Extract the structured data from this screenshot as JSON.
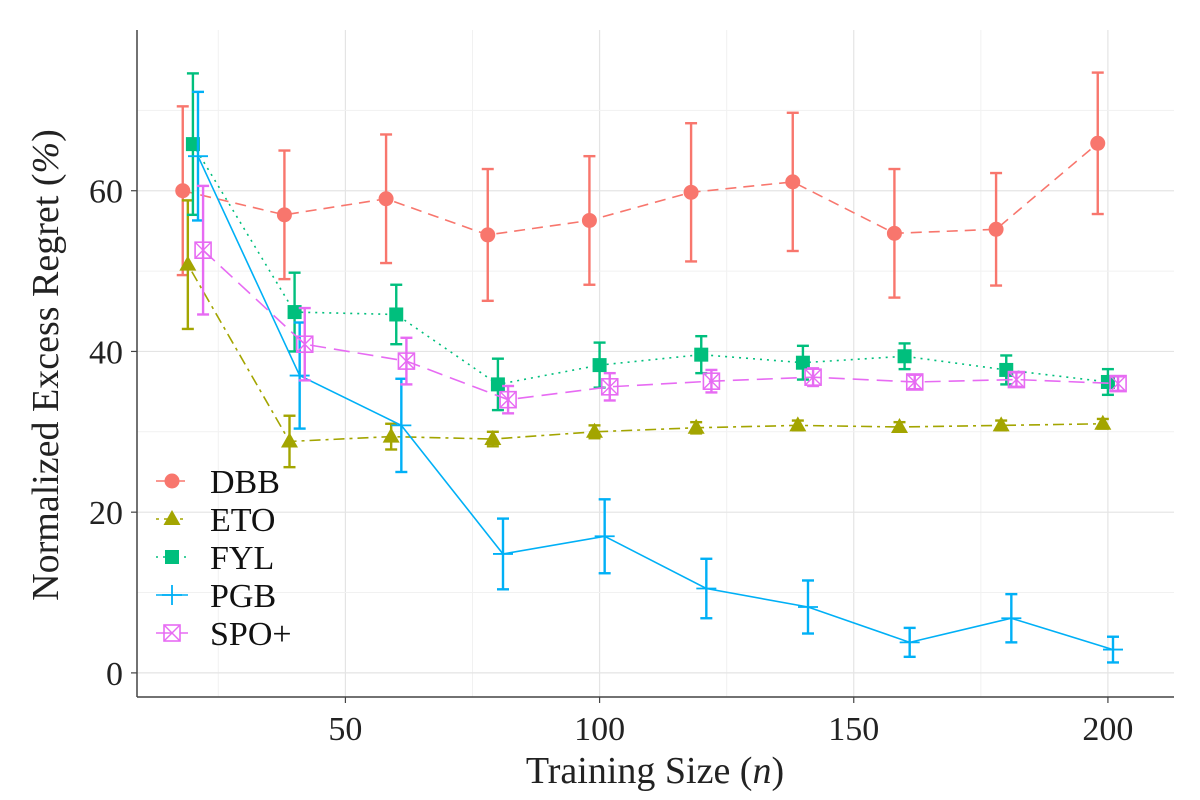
{
  "chart_data": {
    "type": "line",
    "xlabel": "Training Size (n)",
    "ylabel": "Normalized Excess Regret (%)",
    "xlim": [
      9,
      213
    ],
    "ylim": [
      -3,
      80
    ],
    "xticks": [
      50,
      100,
      150,
      200
    ],
    "yticks": [
      0,
      20,
      40,
      60
    ],
    "grid": true,
    "legend_position": "bottom-left",
    "series": [
      {
        "name": "DBB",
        "color": "#F8766D",
        "marker": "circle",
        "dash": "dashed",
        "x": [
          18,
          38,
          58,
          78,
          98,
          118,
          138,
          158,
          178,
          198
        ],
        "y": [
          60,
          57,
          59,
          54.5,
          56.3,
          59.8,
          61.1,
          54.7,
          55.2,
          65.9
        ],
        "err": [
          10.5,
          8.0,
          8.0,
          8.2,
          8.0,
          8.6,
          8.6,
          8.0,
          7.0,
          8.8
        ]
      },
      {
        "name": "ETO",
        "color": "#A3A500",
        "marker": "triangle",
        "dash": "dotdash",
        "x": [
          19,
          39,
          59,
          79,
          99,
          119,
          139,
          159,
          179,
          199
        ],
        "y": [
          50.8,
          28.8,
          29.4,
          29.1,
          30.0,
          30.5,
          30.8,
          30.6,
          30.8,
          31.0
        ],
        "err": [
          8.0,
          3.2,
          1.6,
          0.9,
          0.8,
          0.7,
          0.6,
          0.6,
          0.6,
          0.6
        ]
      },
      {
        "name": "FYL",
        "color": "#00BF7D",
        "marker": "square",
        "dash": "dotted",
        "x": [
          20,
          40,
          60,
          80,
          100,
          120,
          140,
          160,
          180,
          200
        ],
        "y": [
          65.8,
          44.9,
          44.6,
          35.9,
          38.3,
          39.6,
          38.6,
          39.4,
          37.7,
          36.2
        ],
        "err": [
          8.8,
          4.9,
          3.7,
          3.2,
          2.8,
          2.3,
          2.1,
          1.6,
          1.8,
          1.6
        ]
      },
      {
        "name": "PGB",
        "color": "#00B0F6",
        "marker": "plus",
        "dash": "solid",
        "x": [
          21,
          41,
          61,
          81,
          101,
          121,
          141,
          161,
          181,
          201
        ],
        "y": [
          64.3,
          37.0,
          30.8,
          14.8,
          17.0,
          10.5,
          8.2,
          3.8,
          6.8,
          2.9
        ],
        "err": [
          8.0,
          6.6,
          5.8,
          4.4,
          4.6,
          3.7,
          3.3,
          1.8,
          3.0,
          1.6
        ]
      },
      {
        "name": "SPO+",
        "color": "#E76BF3",
        "marker": "crossbox",
        "dash": "longdash",
        "x": [
          22,
          42,
          62,
          82,
          102,
          122,
          142,
          162,
          182,
          202
        ],
        "y": [
          52.6,
          40.9,
          38.8,
          34.0,
          35.6,
          36.3,
          36.8,
          36.2,
          36.5,
          36.0
        ],
        "err": [
          8.0,
          4.5,
          2.9,
          1.7,
          1.7,
          1.4,
          1.1,
          0.9,
          0.9,
          0.9
        ]
      }
    ]
  }
}
